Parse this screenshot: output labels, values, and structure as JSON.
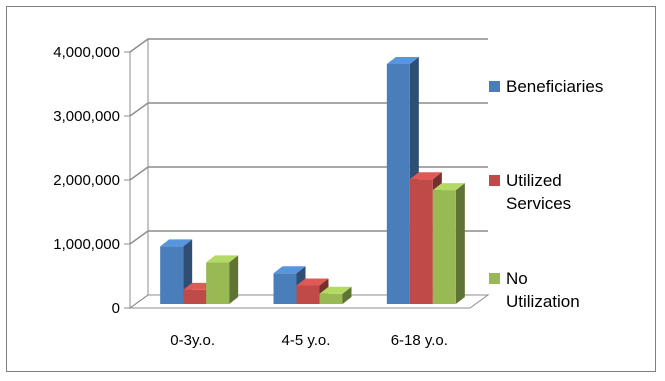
{
  "chart_data": {
    "type": "bar",
    "title": "",
    "xlabel": "",
    "ylabel": "",
    "categories": [
      "0-3y.o.",
      "4-5 y.o.",
      "6-18 y.o."
    ],
    "series": [
      {
        "name": "Beneficiaries",
        "values": [
          900000,
          480000,
          3750000
        ],
        "color": "#4a7ebb"
      },
      {
        "name": "Utilized Services",
        "values": [
          220000,
          290000,
          1950000
        ],
        "color": "#be4b48"
      },
      {
        "name": "No Utilization",
        "values": [
          650000,
          160000,
          1780000
        ],
        "color": "#98b954"
      }
    ],
    "ylim": [
      0,
      4000000
    ],
    "yticks": [
      "0",
      "1,000,000",
      "2,000,000",
      "3,000,000",
      "4,000,000"
    ],
    "grid": true,
    "legend_position": "right",
    "projection": "3d-clustered"
  }
}
